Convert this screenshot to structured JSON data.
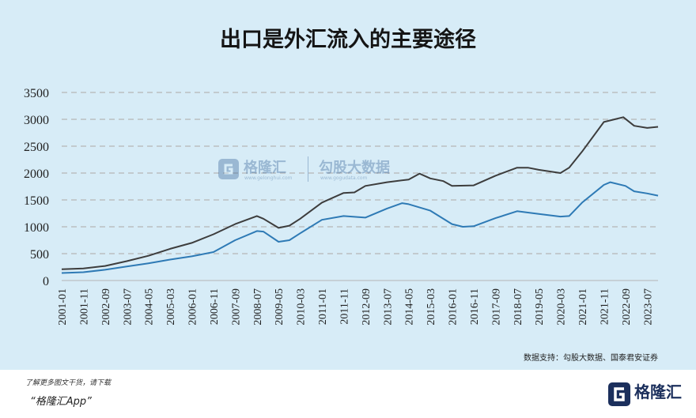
{
  "title": "出口是外汇流入的主要途径",
  "source": "数据支持：勾股大数据、国泰君安证券",
  "footer": {
    "line1": "了解更多图文干货，请下载",
    "line2": "“格隆汇App”",
    "brand": "格隆汇"
  },
  "watermark": {
    "name1": "格隆汇",
    "sub1": "www.gelonghui.com",
    "name2": "勾股大数据",
    "sub2": "www.gogudata.com"
  },
  "colors": {
    "background": "#d7ecf7",
    "series_dark": "#3d3d3d",
    "series_blue": "#2e7ab5",
    "grid": "#b5b5b5"
  },
  "chart_data": {
    "type": "line",
    "title": "出口是外汇流入的主要途径",
    "xlabel": "",
    "ylabel": "",
    "ylim": [
      0,
      3500
    ],
    "y_ticks": [
      0,
      500,
      1000,
      1500,
      2000,
      2500,
      3000,
      3500
    ],
    "x_range": [
      "2001-01",
      "2023-12"
    ],
    "x_tick_labels": [
      "2001-01",
      "2001-11",
      "2002-09",
      "2003-07",
      "2004-05",
      "2005-03",
      "2006-01",
      "2006-11",
      "2007-09",
      "2008-07",
      "2009-05",
      "2010-03",
      "2011-01",
      "2011-11",
      "2012-09",
      "2013-07",
      "2014-05",
      "2015-03",
      "2016-01",
      "2016-11",
      "2017-09",
      "2018-07",
      "2019-05",
      "2020-03",
      "2021-01",
      "2021-11",
      "2022-09",
      "2023-07"
    ],
    "grid": "horizontal dashed",
    "series": [
      {
        "key": "dark",
        "color": "#3d3d3d",
        "points": [
          [
            "2001-01",
            210
          ],
          [
            "2001-11",
            225
          ],
          [
            "2002-09",
            270
          ],
          [
            "2003-07",
            360
          ],
          [
            "2004-05",
            460
          ],
          [
            "2005-03",
            590
          ],
          [
            "2006-01",
            700
          ],
          [
            "2006-11",
            860
          ],
          [
            "2007-09",
            1050
          ],
          [
            "2008-07",
            1200
          ],
          [
            "2008-10",
            1150
          ],
          [
            "2009-05",
            980
          ],
          [
            "2009-10",
            1020
          ],
          [
            "2010-03",
            1150
          ],
          [
            "2011-01",
            1450
          ],
          [
            "2011-11",
            1630
          ],
          [
            "2012-04",
            1640
          ],
          [
            "2012-09",
            1760
          ],
          [
            "2013-07",
            1830
          ],
          [
            "2014-05",
            1880
          ],
          [
            "2014-10",
            1990
          ],
          [
            "2015-03",
            1900
          ],
          [
            "2015-09",
            1850
          ],
          [
            "2016-01",
            1760
          ],
          [
            "2016-11",
            1770
          ],
          [
            "2017-09",
            1950
          ],
          [
            "2018-07",
            2100
          ],
          [
            "2018-12",
            2100
          ],
          [
            "2019-05",
            2060
          ],
          [
            "2020-03",
            2000
          ],
          [
            "2020-07",
            2100
          ],
          [
            "2021-01",
            2400
          ],
          [
            "2021-11",
            2950
          ],
          [
            "2022-04",
            3000
          ],
          [
            "2022-08",
            3040
          ],
          [
            "2023-01",
            2880
          ],
          [
            "2023-07",
            2840
          ],
          [
            "2023-12",
            2860
          ]
        ]
      },
      {
        "key": "blue",
        "color": "#2e7ab5",
        "points": [
          [
            "2001-01",
            140
          ],
          [
            "2001-11",
            155
          ],
          [
            "2002-09",
            200
          ],
          [
            "2003-07",
            260
          ],
          [
            "2004-05",
            320
          ],
          [
            "2005-03",
            390
          ],
          [
            "2006-01",
            450
          ],
          [
            "2006-11",
            530
          ],
          [
            "2007-09",
            750
          ],
          [
            "2008-07",
            920
          ],
          [
            "2008-10",
            910
          ],
          [
            "2009-05",
            720
          ],
          [
            "2009-10",
            750
          ],
          [
            "2010-03",
            880
          ],
          [
            "2011-01",
            1130
          ],
          [
            "2011-11",
            1200
          ],
          [
            "2012-09",
            1170
          ],
          [
            "2013-07",
            1340
          ],
          [
            "2014-02",
            1440
          ],
          [
            "2014-05",
            1420
          ],
          [
            "2015-03",
            1300
          ],
          [
            "2016-01",
            1050
          ],
          [
            "2016-06",
            1000
          ],
          [
            "2016-11",
            1010
          ],
          [
            "2017-09",
            1160
          ],
          [
            "2018-07",
            1290
          ],
          [
            "2019-05",
            1240
          ],
          [
            "2020-03",
            1190
          ],
          [
            "2020-07",
            1200
          ],
          [
            "2021-01",
            1450
          ],
          [
            "2021-11",
            1780
          ],
          [
            "2022-02",
            1830
          ],
          [
            "2022-09",
            1760
          ],
          [
            "2023-01",
            1660
          ],
          [
            "2023-07",
            1620
          ],
          [
            "2023-12",
            1580
          ]
        ]
      }
    ]
  }
}
